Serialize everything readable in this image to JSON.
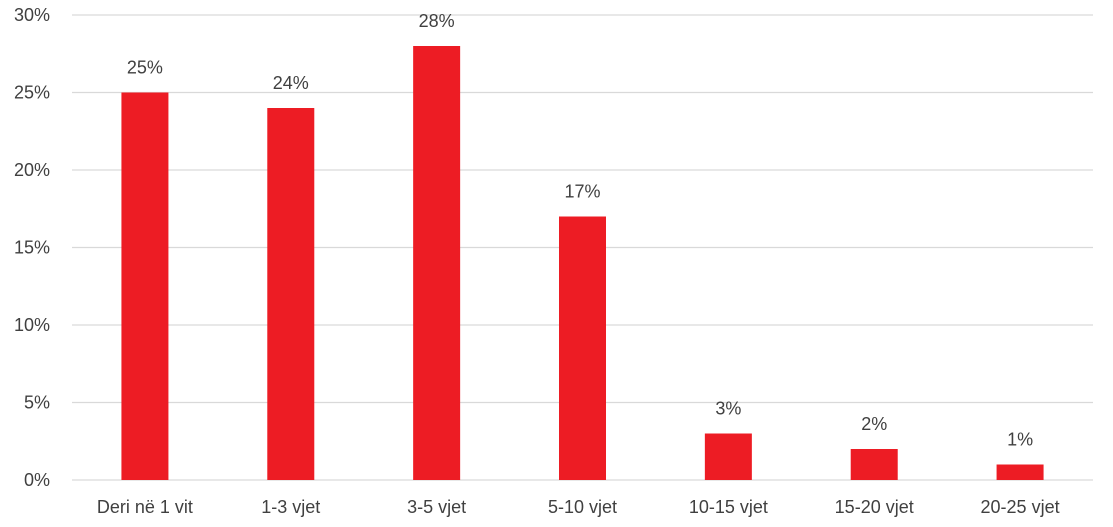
{
  "chart_data": {
    "type": "bar",
    "categories": [
      "Deri në 1 vit",
      "1-3 vjet",
      "3-5 vjet",
      "5-10 vjet",
      "10-15 vjet",
      "15-20 vjet",
      "20-25 vjet"
    ],
    "values": [
      25,
      24,
      28,
      17,
      3,
      2,
      1
    ],
    "data_labels": [
      "25%",
      "24%",
      "28%",
      "17%",
      "3%",
      "2%",
      "1%"
    ],
    "y_ticks": [
      0,
      5,
      10,
      15,
      20,
      25,
      30
    ],
    "y_tick_labels": [
      "0%",
      "5%",
      "10%",
      "15%",
      "20%",
      "25%",
      "30%"
    ],
    "ylim": [
      0,
      30
    ],
    "grid": true,
    "bar_color": "#ed1c24",
    "title": "",
    "xlabel": "",
    "ylabel": ""
  }
}
